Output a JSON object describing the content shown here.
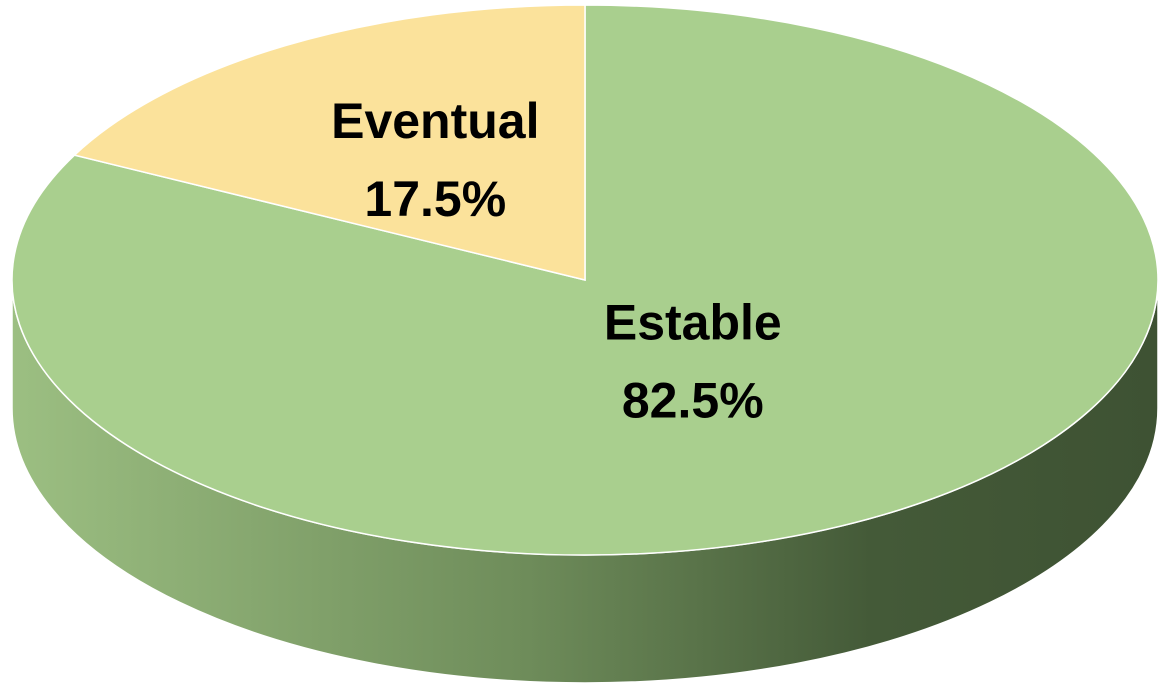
{
  "chart_data": {
    "type": "pie",
    "categories": [
      "Estable",
      "Eventual"
    ],
    "values": [
      82.5,
      17.5
    ],
    "value_labels": [
      "82.5%",
      "17.5%"
    ],
    "colors": [
      "#a9cf8e",
      "#fbe29b"
    ]
  }
}
